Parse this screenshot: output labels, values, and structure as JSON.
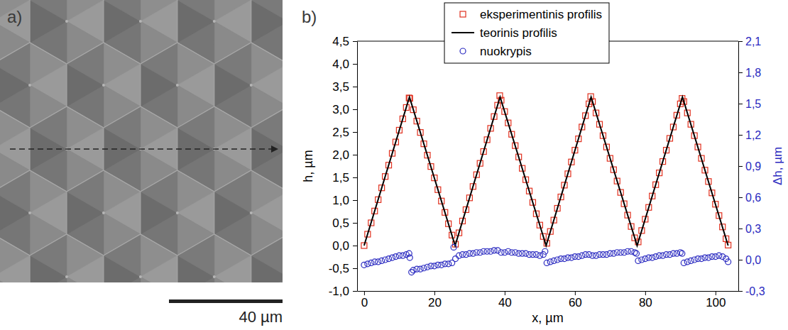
{
  "image_panel": {
    "label": "a)",
    "scale_bar": "40 µm"
  },
  "chart_data": {
    "type": "scatter",
    "panel_label": "b)",
    "xlabel": "x, µm",
    "ylabel": "h, µm",
    "y2label": "Δh, µm",
    "xlim": [
      -2,
      106.5
    ],
    "xticks": [
      0,
      20,
      40,
      60,
      80,
      100
    ],
    "ylim": [
      -1.0,
      4.5
    ],
    "yticks": [
      {
        "value": -1.0,
        "label": "-1,0"
      },
      {
        "value": -0.5,
        "label": "-0,5"
      },
      {
        "value": 0,
        "label": "0,0"
      },
      {
        "value": 0.5,
        "label": "0,5"
      },
      {
        "value": 1.0,
        "label": "1,0"
      },
      {
        "value": 1.5,
        "label": "1,5"
      },
      {
        "value": 2.0,
        "label": "2,0"
      },
      {
        "value": 2.5,
        "label": "2,5"
      },
      {
        "value": 3.0,
        "label": "3,0"
      },
      {
        "value": 3.5,
        "label": "3,5"
      },
      {
        "value": 4.0,
        "label": "4,0"
      },
      {
        "value": 4.5,
        "label": "4,5"
      }
    ],
    "y2lim": [
      -0.3,
      2.1
    ],
    "y2ticks": [
      {
        "value": -0.3,
        "label": "-0,3"
      },
      {
        "value": 0,
        "label": "0,0"
      },
      {
        "value": 0.3,
        "label": "0,3"
      },
      {
        "value": 0.6,
        "label": "0,6"
      },
      {
        "value": 0.9,
        "label": "0,9"
      },
      {
        "value": 1.2,
        "label": "1,2"
      },
      {
        "value": 1.5,
        "label": "1,5"
      },
      {
        "value": 1.8,
        "label": "1,8"
      },
      {
        "value": 2.1,
        "label": "2,1"
      }
    ],
    "grid": false,
    "legend": "top",
    "series": [
      {
        "name": "eksperimentinis profilis",
        "type": "scatter",
        "marker": "square",
        "color": "#e0301e",
        "x": [
          0,
          1,
          2,
          3,
          4,
          5,
          6,
          7,
          8,
          9,
          10,
          11,
          12,
          12.8,
          13,
          14,
          15,
          16,
          17,
          18,
          19,
          20,
          21,
          22,
          23,
          24,
          25,
          26,
          27,
          28,
          29,
          30,
          31,
          32,
          33,
          34,
          35,
          36,
          37,
          38,
          38.6,
          39,
          40,
          41,
          42,
          43,
          44,
          45,
          46,
          47,
          48,
          49,
          50,
          51,
          52,
          53,
          54,
          55,
          56,
          57,
          58,
          59,
          60,
          61,
          62,
          63,
          64,
          64.5,
          65,
          66,
          67,
          68,
          69,
          70,
          71,
          72,
          73,
          74,
          75,
          76,
          77,
          78,
          79,
          80,
          81,
          82,
          83,
          84,
          85,
          86,
          87,
          88,
          89,
          90,
          90.5,
          91,
          92,
          93,
          94,
          95,
          96,
          97,
          98,
          99,
          100,
          101,
          102,
          103,
          103.6
        ],
        "values": [
          0.0,
          0.25,
          0.5,
          0.76,
          1.01,
          1.27,
          1.52,
          1.77,
          2.03,
          2.28,
          2.54,
          2.79,
          3.04,
          3.25,
          3.24,
          2.99,
          2.74,
          2.49,
          2.24,
          1.99,
          1.74,
          1.49,
          1.23,
          0.98,
          0.73,
          0.48,
          0.23,
          0.03,
          0.28,
          0.54,
          0.79,
          1.05,
          1.3,
          1.56,
          1.81,
          2.07,
          2.33,
          2.58,
          2.84,
          3.09,
          3.3,
          3.2,
          2.95,
          2.7,
          2.45,
          2.2,
          1.95,
          1.7,
          1.45,
          1.2,
          0.95,
          0.7,
          0.45,
          0.2,
          0.05,
          0.31,
          0.56,
          0.82,
          1.07,
          1.33,
          1.58,
          1.84,
          2.1,
          2.35,
          2.61,
          2.86,
          3.12,
          3.28,
          3.17,
          2.92,
          2.67,
          2.42,
          2.17,
          1.92,
          1.67,
          1.42,
          1.17,
          0.92,
          0.67,
          0.42,
          0.17,
          0.08,
          0.33,
          0.58,
          0.84,
          1.09,
          1.34,
          1.6,
          1.85,
          2.1,
          2.36,
          2.61,
          2.87,
          3.12,
          3.24,
          3.17,
          2.92,
          2.67,
          2.42,
          2.17,
          1.92,
          1.66,
          1.41,
          1.16,
          0.91,
          0.66,
          0.41,
          0.15,
          0.01
        ]
      },
      {
        "name": "teorinis profilis",
        "type": "line",
        "line_style": "solid",
        "color": "#000000",
        "x": [
          0,
          12.9,
          25.9,
          38.7,
          51.8,
          64.6,
          77.7,
          90.6,
          103.6
        ],
        "values": [
          0,
          3.27,
          0,
          3.27,
          0,
          3.27,
          0,
          3.27,
          0
        ]
      },
      {
        "name": "nuokrypis",
        "type": "scatter",
        "marker": "circle",
        "color": "#2a2ac0",
        "axis": "y2",
        "x": [
          0,
          1,
          2,
          3,
          4,
          5,
          6,
          7,
          8,
          9,
          10,
          11,
          12,
          12.8,
          13,
          13.5,
          14,
          15,
          16,
          17,
          18,
          19,
          20,
          21,
          22,
          23,
          24,
          25,
          25.5,
          26,
          27,
          28,
          29,
          30,
          31,
          32,
          33,
          34,
          35,
          36,
          37,
          38,
          39,
          40,
          41,
          42,
          43,
          44,
          45,
          46,
          47,
          48,
          49,
          50,
          51,
          51.5,
          52,
          53,
          54,
          55,
          56,
          57,
          58,
          59,
          60,
          61,
          62,
          63,
          64,
          65,
          66,
          67,
          68,
          69,
          70,
          71,
          72,
          73,
          74,
          75,
          76,
          77,
          77.5,
          78,
          79,
          80,
          81,
          82,
          83,
          84,
          85,
          86,
          87,
          88,
          89,
          90,
          90.5,
          91,
          92,
          93,
          94,
          95,
          96,
          97,
          98,
          99,
          100,
          101,
          102,
          103,
          103.6
        ],
        "values": [
          -0.05,
          -0.04,
          -0.03,
          -0.02,
          -0.02,
          -0.01,
          0.0,
          0.01,
          0.02,
          0.03,
          0.04,
          0.04,
          0.05,
          0.06,
          0.02,
          -0.12,
          -0.1,
          -0.09,
          -0.09,
          -0.08,
          -0.07,
          -0.06,
          -0.06,
          -0.05,
          -0.05,
          -0.04,
          -0.04,
          -0.03,
          0.12,
          0.01,
          0.04,
          0.05,
          0.05,
          0.06,
          0.06,
          0.07,
          0.07,
          0.08,
          0.08,
          0.08,
          0.09,
          0.09,
          0.07,
          0.07,
          0.08,
          0.07,
          0.07,
          0.06,
          0.06,
          0.06,
          0.05,
          0.05,
          0.05,
          0.04,
          0.05,
          0.08,
          -0.03,
          -0.02,
          -0.01,
          0.0,
          0.01,
          0.01,
          0.02,
          0.02,
          0.03,
          0.03,
          0.04,
          0.05,
          0.05,
          0.04,
          0.04,
          0.05,
          0.05,
          0.05,
          0.06,
          0.06,
          0.07,
          0.07,
          0.07,
          0.08,
          0.08,
          0.07,
          0.06,
          -0.01,
          0.0,
          0.01,
          0.02,
          0.02,
          0.03,
          0.04,
          0.04,
          0.05,
          0.05,
          0.06,
          0.06,
          0.07,
          0.06,
          -0.03,
          -0.02,
          -0.01,
          0.0,
          0.01,
          0.01,
          0.02,
          0.02,
          0.03,
          0.03,
          0.04,
          0.03,
          0.01,
          -0.02
        ]
      }
    ]
  }
}
